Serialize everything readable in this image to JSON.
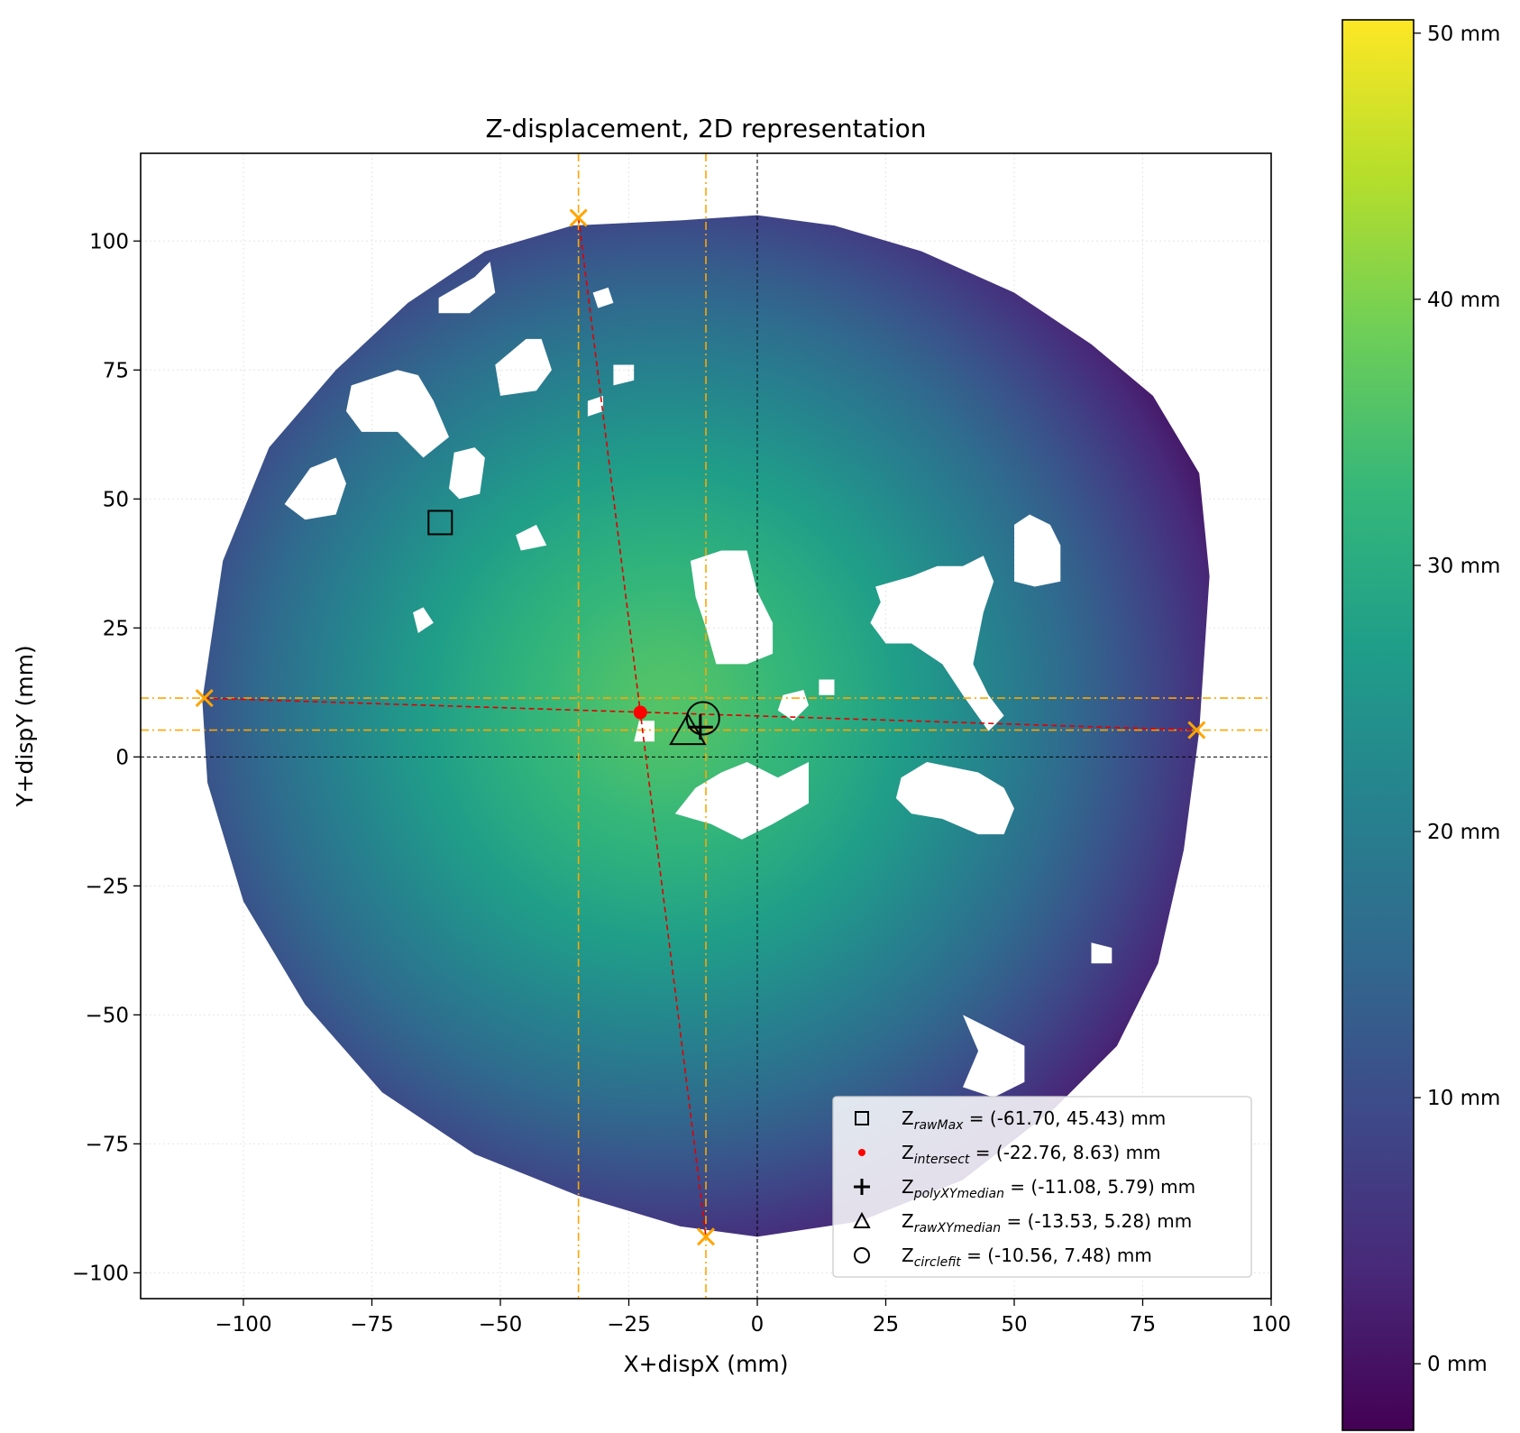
{
  "chart_data": {
    "type": "heatmap",
    "title": "Z-displacement, 2D representation",
    "xlabel": "X+dispX (mm)",
    "ylabel": "Y+dispY (mm)",
    "xlim": [
      -120,
      100
    ],
    "ylim": [
      -105,
      117
    ],
    "xticks": [
      -100,
      -75,
      -50,
      -25,
      0,
      25,
      50,
      75,
      100
    ],
    "yticks": [
      -100,
      -75,
      -50,
      -25,
      0,
      25,
      50,
      75,
      100
    ],
    "xtick_labels": [
      "−100",
      "−75",
      "−50",
      "−25",
      "0",
      "25",
      "50",
      "75",
      "100"
    ],
    "ytick_labels": [
      "−100",
      "−75",
      "−50",
      "−25",
      "0",
      "25",
      "50",
      "75",
      "100"
    ],
    "grid": true,
    "colormap": "viridis",
    "colorbar": {
      "vmin": -2.5,
      "vmax": 50.5,
      "ticks": [
        0,
        10,
        20,
        30,
        40,
        50
      ],
      "tick_labels": [
        "0 mm",
        "10 mm",
        "20 mm",
        "30 mm",
        "40 mm",
        "50 mm"
      ]
    },
    "surface": {
      "center": [
        -18,
        10
      ],
      "peak_value": 36,
      "edge_value": 1,
      "boundary": [
        [
          -36,
          103
        ],
        [
          -15,
          104
        ],
        [
          0,
          105
        ],
        [
          15,
          103
        ],
        [
          32,
          98
        ],
        [
          50,
          90
        ],
        [
          65,
          80
        ],
        [
          77,
          70
        ],
        [
          86,
          55
        ],
        [
          88,
          35
        ],
        [
          87,
          20
        ],
        [
          86,
          5
        ],
        [
          83,
          -18
        ],
        [
          78,
          -40
        ],
        [
          70,
          -56
        ],
        [
          58,
          -68
        ],
        [
          40,
          -82
        ],
        [
          20,
          -90
        ],
        [
          0,
          -93
        ],
        [
          -15,
          -91
        ],
        [
          -35,
          -85
        ],
        [
          -55,
          -77
        ],
        [
          -73,
          -65
        ],
        [
          -88,
          -48
        ],
        [
          -100,
          -28
        ],
        [
          -107,
          -5
        ],
        [
          -108,
          11
        ],
        [
          -104,
          38
        ],
        [
          -95,
          60
        ],
        [
          -82,
          75
        ],
        [
          -68,
          88
        ],
        [
          -53,
          98
        ]
      ],
      "holes": [
        [
          [
            -13,
            38
          ],
          [
            -7,
            40
          ],
          [
            -2,
            40
          ],
          [
            0,
            32
          ],
          [
            3,
            26
          ],
          [
            3,
            20
          ],
          [
            -2,
            18
          ],
          [
            -8,
            18
          ],
          [
            -10,
            25
          ],
          [
            -12,
            31
          ]
        ],
        [
          [
            -7,
            -3
          ],
          [
            -2,
            -1
          ],
          [
            4,
            -4
          ],
          [
            10,
            -1
          ],
          [
            10,
            -9
          ],
          [
            3,
            -13
          ],
          [
            -3,
            -16
          ],
          [
            -9,
            -13
          ],
          [
            -16,
            -11
          ],
          [
            -12,
            -6
          ]
        ],
        [
          [
            23,
            33
          ],
          [
            30,
            35
          ],
          [
            35,
            37
          ],
          [
            40,
            37
          ],
          [
            44,
            39
          ],
          [
            46,
            34
          ],
          [
            44,
            28
          ],
          [
            42,
            18
          ],
          [
            45,
            12
          ],
          [
            48,
            8
          ],
          [
            45,
            5
          ],
          [
            40,
            12
          ],
          [
            36,
            18
          ],
          [
            30,
            22
          ],
          [
            25,
            22
          ],
          [
            22,
            26
          ],
          [
            24,
            30
          ]
        ],
        [
          [
            28,
            -4
          ],
          [
            33,
            -1
          ],
          [
            38,
            -2
          ],
          [
            43,
            -3
          ],
          [
            48,
            -6
          ],
          [
            50,
            -10
          ],
          [
            48,
            -15
          ],
          [
            43,
            -15
          ],
          [
            36,
            -12
          ],
          [
            30,
            -11
          ],
          [
            27,
            -8
          ]
        ],
        [
          [
            -79,
            72
          ],
          [
            -70,
            75
          ],
          [
            -66,
            74
          ],
          [
            -63,
            69
          ],
          [
            -60,
            62
          ],
          [
            -65,
            58
          ],
          [
            -70,
            63
          ],
          [
            -77,
            63
          ],
          [
            -80,
            67
          ]
        ],
        [
          [
            -87,
            56
          ],
          [
            -82,
            58
          ],
          [
            -80,
            53
          ],
          [
            -82,
            47
          ],
          [
            -88,
            46
          ],
          [
            -92,
            49
          ]
        ],
        [
          [
            -62,
            89
          ],
          [
            -55,
            93
          ],
          [
            -52,
            96
          ],
          [
            -51,
            90
          ],
          [
            -56,
            86
          ],
          [
            -62,
            86
          ]
        ],
        [
          [
            -51,
            76
          ],
          [
            -45,
            81
          ],
          [
            -42,
            81
          ],
          [
            -40,
            75
          ],
          [
            -43,
            71
          ],
          [
            -50,
            70
          ]
        ],
        [
          [
            -59,
            59
          ],
          [
            -55,
            60
          ],
          [
            -53,
            58
          ],
          [
            -54,
            51
          ],
          [
            -58,
            50
          ],
          [
            -60,
            52
          ]
        ],
        [
          [
            -47,
            43
          ],
          [
            -43,
            45
          ],
          [
            -41,
            41
          ],
          [
            -46,
            40
          ]
        ],
        [
          [
            -67,
            28
          ],
          [
            -65,
            29
          ],
          [
            -63,
            26
          ],
          [
            -66,
            24
          ]
        ],
        [
          [
            50,
            45
          ],
          [
            53,
            47
          ],
          [
            57,
            45
          ],
          [
            59,
            41
          ],
          [
            59,
            34
          ],
          [
            54,
            33
          ],
          [
            50,
            34
          ],
          [
            50,
            39
          ]
        ],
        [
          [
            40,
            -50
          ],
          [
            48,
            -54
          ],
          [
            52,
            -56
          ],
          [
            52,
            -63
          ],
          [
            46,
            -66
          ],
          [
            40,
            -64
          ],
          [
            43,
            -57
          ]
        ],
        [
          [
            -28,
            76
          ],
          [
            -24,
            76
          ],
          [
            -24,
            73
          ],
          [
            -28,
            72
          ]
        ],
        [
          [
            -33,
            69
          ],
          [
            -30,
            70
          ],
          [
            -30,
            67
          ],
          [
            -33,
            66
          ]
        ],
        [
          [
            -23,
            7
          ],
          [
            -20,
            7
          ],
          [
            -20,
            3
          ],
          [
            -24,
            3
          ]
        ],
        [
          [
            5,
            12
          ],
          [
            9,
            13
          ],
          [
            10,
            10
          ],
          [
            7,
            7
          ],
          [
            4,
            9
          ]
        ],
        [
          [
            12,
            15
          ],
          [
            15,
            15
          ],
          [
            15,
            12
          ],
          [
            12,
            12
          ]
        ],
        [
          [
            65,
            -36
          ],
          [
            69,
            -37
          ],
          [
            69,
            -40
          ],
          [
            65,
            -40
          ]
        ],
        [
          [
            -32,
            90
          ],
          [
            -29,
            91
          ],
          [
            -28,
            88
          ],
          [
            -31,
            87
          ]
        ]
      ]
    },
    "crosshair_x": [
      -34.8,
      -10.0
    ],
    "crosshair_y": [
      11.4,
      5.2
    ],
    "x_markers": [
      {
        "x": -34.8,
        "y": 104.5
      },
      {
        "x": -10.0,
        "y": -93.0
      },
      {
        "x": -107.6,
        "y": 11.4
      },
      {
        "x": 85.5,
        "y": 5.2
      }
    ],
    "fit_lines": [
      {
        "x": [
          -34.8,
          -10.0
        ],
        "y": [
          104.5,
          -93.0
        ]
      },
      {
        "x": [
          -107.6,
          85.5
        ],
        "y": [
          11.4,
          5.2
        ]
      }
    ],
    "points": {
      "raw_max": {
        "x": -61.7,
        "y": 45.43
      },
      "intersect": {
        "x": -22.76,
        "y": 8.63
      },
      "poly_xy_median": {
        "x": -11.08,
        "y": 5.79
      },
      "raw_xy_median": {
        "x": -13.53,
        "y": 5.28
      },
      "circlefit": {
        "x": -10.56,
        "y": 7.48
      }
    },
    "legend_position": "lower right",
    "legend": [
      {
        "marker": "square",
        "symbol": "Z",
        "sub": "rawMax",
        "text": " = (-61.70, 45.43) mm"
      },
      {
        "marker": "dot",
        "symbol": "Z",
        "sub": "intersect",
        "text": " = (-22.76, 8.63) mm"
      },
      {
        "marker": "plus",
        "symbol": "Z",
        "sub": "polyXYmedian",
        "text": " = (-11.08, 5.79) mm"
      },
      {
        "marker": "triangle",
        "symbol": "Z",
        "sub": "rawXYmedian",
        "text": " = (-13.53, 5.28) mm"
      },
      {
        "marker": "circle",
        "symbol": "Z",
        "sub": "circlefit",
        "text": " = (-10.56, 7.48) mm"
      }
    ],
    "colors": {
      "marker": "#ffa500",
      "fit_line": "#e00000",
      "intersect_point": "#ff0000",
      "axis": "#000000",
      "grid": "#e6e6e6"
    }
  }
}
